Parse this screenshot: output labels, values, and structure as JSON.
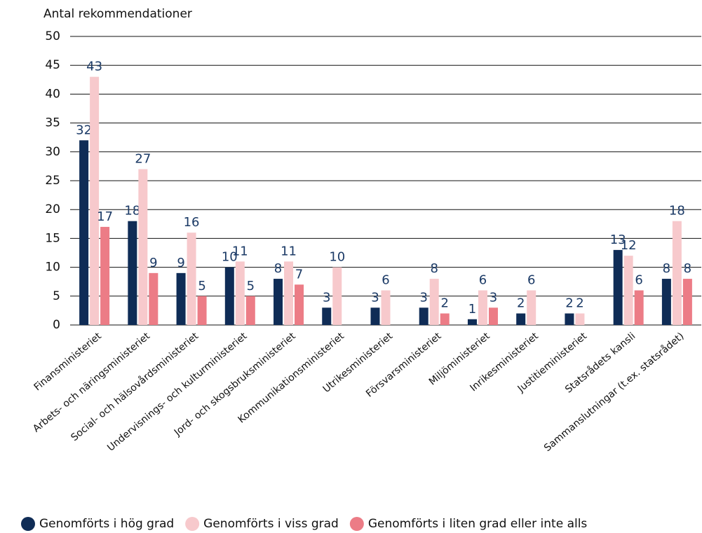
{
  "chart_data": {
    "type": "bar",
    "y_label": "Antal rekommendationer",
    "categories": [
      "Finansministeriet",
      "Arbets- och näringsministeriet",
      "Social- och hälsovårdsministeriet",
      "Undervisnings- och kulturministeriet",
      "Jord- och skogsbruksministeriet",
      "Kommunikationsministeriet",
      "Utrikesministeriet",
      "Försvarsministeriet",
      "Miljöministeriet",
      "Inrikesministeriet",
      "Justitieministeriet",
      "Statsrådets kansli",
      "Sammanslutningar (t.ex. statsrådet)"
    ],
    "series": [
      {
        "name": "Genomförts i hög grad",
        "color": "#0f2c56",
        "values": [
          32,
          18,
          9,
          10,
          8,
          3,
          3,
          3,
          1,
          2,
          2,
          13,
          8
        ]
      },
      {
        "name": "Genomförts i viss grad",
        "color": "#f7c9cc",
        "values": [
          43,
          27,
          16,
          11,
          11,
          10,
          6,
          8,
          6,
          6,
          2,
          12,
          18
        ]
      },
      {
        "name": "Genomförts i liten grad eller inte alls",
        "color": "#ec7c86",
        "values": [
          17,
          9,
          5,
          5,
          7,
          null,
          null,
          2,
          3,
          null,
          null,
          6,
          8
        ]
      }
    ],
    "ylim": [
      0,
      50
    ],
    "yticks": [
      0,
      5,
      10,
      15,
      20,
      25,
      30,
      35,
      40,
      45,
      50
    ],
    "grid": true,
    "legend": "bottom"
  }
}
